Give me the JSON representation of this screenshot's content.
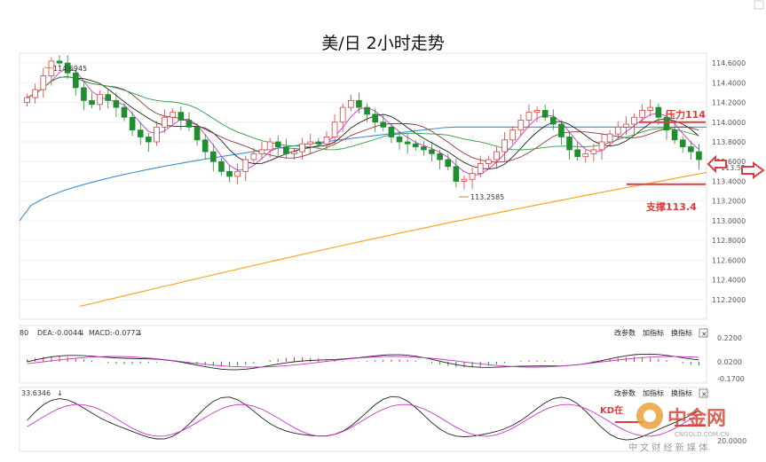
{
  "chart_data": [
    {
      "type": "candlestick",
      "title": "美/日 2小时走势",
      "ylim": [
        112.0,
        114.7
      ],
      "y_ticks": [
        "114.6000",
        "114.4000",
        "114.2000",
        "114.0000",
        "113.8000",
        "113.6000",
        "113.4000",
        "113.2000",
        "113.0000",
        "112.8000",
        "112.6000",
        "112.4000",
        "112.2000"
      ],
      "high_label": "114.6945",
      "low_label": "113.2585",
      "price_tag": "113.55",
      "annotations": {
        "resistance": "压力114",
        "support": "支撑113.4"
      },
      "resistance_level": 114.0,
      "support_level": 113.37,
      "ma200_trend": {
        "x": [
          0,
          1
        ],
        "y": [
          112.13,
          113.49
        ]
      },
      "ma100_trend": {
        "x": [
          0,
          1
        ],
        "y": [
          113.0,
          113.97
        ]
      },
      "close_series": [
        114.25,
        114.33,
        114.47,
        114.62,
        114.6,
        114.5,
        114.35,
        114.22,
        114.18,
        114.28,
        114.22,
        114.15,
        114.05,
        113.92,
        113.85,
        113.8,
        113.95,
        114.05,
        114.1,
        114.02,
        113.95,
        113.82,
        113.7,
        113.6,
        113.5,
        113.45,
        113.5,
        113.62,
        113.68,
        113.72,
        113.8,
        113.75,
        113.68,
        113.7,
        113.78,
        113.8,
        113.78,
        113.85,
        114.0,
        114.15,
        114.22,
        114.15,
        114.08,
        114.0,
        113.95,
        113.85,
        113.8,
        113.78,
        113.75,
        113.72,
        113.68,
        113.62,
        113.55,
        113.4,
        113.42,
        113.48,
        113.58,
        113.62,
        113.7,
        113.82,
        113.92,
        114.02,
        114.1,
        114.12,
        114.05,
        113.98,
        113.85,
        113.72,
        113.65,
        113.68,
        113.72,
        113.8,
        113.88,
        113.95,
        113.98,
        114.05,
        114.12,
        114.15,
        114.05,
        113.92,
        113.82,
        113.75,
        113.7,
        113.62
      ]
    },
    {
      "type": "line",
      "indicator": "MACD",
      "legend": [
        "DEA:-0.0044",
        "MACD:-0.0772"
      ],
      "left_fragment": "80",
      "y_ticks": [
        "0.2200",
        "0.0200",
        "-0.1700"
      ],
      "buttons": [
        "改参数",
        "加指标",
        "换指标"
      ]
    },
    {
      "type": "line",
      "indicator": "KD",
      "legend": [
        "33.6346"
      ],
      "y_ticks": [
        "20.0000"
      ],
      "note": "KD在",
      "buttons": [
        "改参数",
        "加指标",
        "换指标"
      ]
    }
  ],
  "watermark": {
    "brand": "中金网",
    "site": "CNGOLD.COM.CN",
    "slogan": "中 文 财 经 新 媒 体"
  },
  "colors": {
    "up": "#e03c3c",
    "down": "#1e8f2e",
    "ma200": "#f5a623",
    "ma100": "#3c8fd6",
    "ma60": "#2e9e3e",
    "kd_k": "#222222",
    "kd_d": "#cc33cc",
    "annotation": "#e03c3c"
  }
}
